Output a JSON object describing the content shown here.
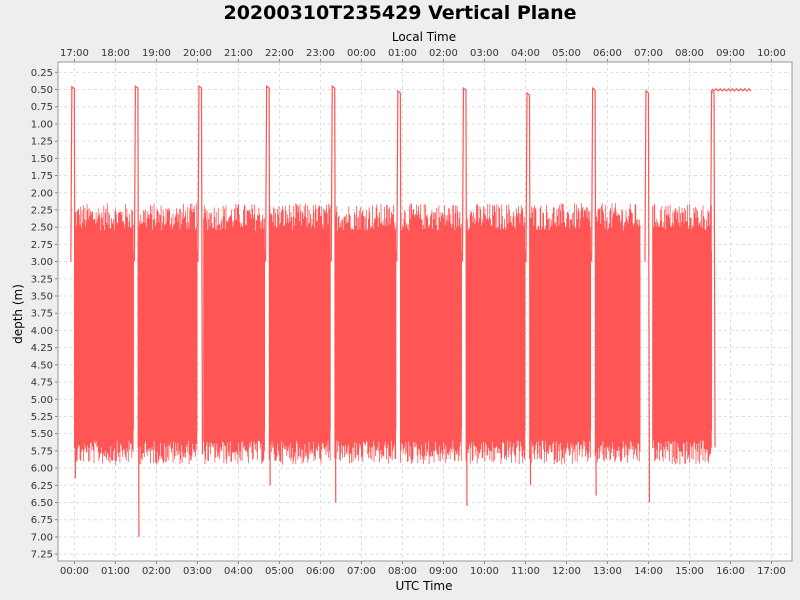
{
  "chart_data": {
    "type": "line",
    "title": "20200310T235429 Vertical Plane",
    "xlabel": "UTC Time",
    "x2label": "Local Time",
    "ylabel": "depth (m)",
    "x_ticks": [
      "00:00",
      "01:00",
      "02:00",
      "03:00",
      "04:00",
      "05:00",
      "06:00",
      "07:00",
      "08:00",
      "09:00",
      "10:00",
      "11:00",
      "12:00",
      "13:00",
      "14:00",
      "15:00",
      "16:00",
      "17:00"
    ],
    "x2_ticks": [
      "17:00",
      "18:00",
      "19:00",
      "20:00",
      "21:00",
      "22:00",
      "23:00",
      "00:00",
      "01:00",
      "02:00",
      "03:00",
      "04:00",
      "05:00",
      "06:00",
      "07:00",
      "08:00",
      "09:00",
      "10:00"
    ],
    "y_ticks": [
      "0.25",
      "0.50",
      "0.75",
      "1.00",
      "1.25",
      "1.50",
      "1.75",
      "2.00",
      "2.25",
      "2.50",
      "2.75",
      "3.00",
      "3.25",
      "3.50",
      "3.75",
      "4.00",
      "4.25",
      "4.50",
      "4.75",
      "5.00",
      "5.25",
      "5.50",
      "5.75",
      "6.00",
      "6.25",
      "6.50",
      "6.75",
      "7.00",
      "7.25"
    ],
    "xlim_hours": [
      -0.4,
      17.5
    ],
    "ylim": [
      0.1,
      7.35
    ],
    "y_inverted": true,
    "grid": true,
    "color": "#ff5555",
    "dive_bursts": [
      {
        "start_h": 0.0,
        "end_h": 1.45
      },
      {
        "start_h": 1.55,
        "end_h": 3.0
      },
      {
        "start_h": 3.15,
        "end_h": 4.65
      },
      {
        "start_h": 4.75,
        "end_h": 6.25
      },
      {
        "start_h": 6.35,
        "end_h": 7.85
      },
      {
        "start_h": 7.95,
        "end_h": 9.45
      },
      {
        "start_h": 9.55,
        "end_h": 11.0
      },
      {
        "start_h": 11.1,
        "end_h": 12.6
      },
      {
        "start_h": 12.7,
        "end_h": 13.8
      },
      {
        "start_h": 14.1,
        "end_h": 15.55
      }
    ],
    "burst_depth_range": [
      2.6,
      5.6
    ],
    "surface_events": [
      {
        "h": -0.05,
        "top": 0.46,
        "bottom": 6.15
      },
      {
        "h": 1.5,
        "top": 0.45,
        "bottom": 7.0
      },
      {
        "h": 3.05,
        "top": 0.45,
        "bottom": 5.8
      },
      {
        "h": 4.7,
        "top": 0.45,
        "bottom": 6.25
      },
      {
        "h": 6.3,
        "top": 0.45,
        "bottom": 6.5
      },
      {
        "h": 7.9,
        "top": 0.52,
        "bottom": 5.6
      },
      {
        "h": 9.5,
        "top": 0.48,
        "bottom": 6.55
      },
      {
        "h": 11.05,
        "top": 0.55,
        "bottom": 6.25
      },
      {
        "h": 12.65,
        "top": 0.48,
        "bottom": 6.4
      },
      {
        "h": 13.95,
        "top": 0.52,
        "bottom": 6.5
      },
      {
        "h": 15.55,
        "top": 0.52,
        "bottom": 5.7
      }
    ],
    "surface_tail": {
      "start_h": 15.55,
      "end_h": 16.5,
      "depth": 0.5
    }
  }
}
